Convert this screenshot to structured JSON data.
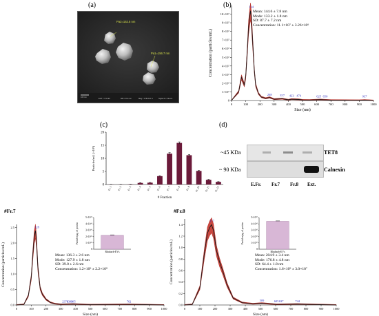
{
  "panel_labels": {
    "a": "(a)",
    "b": "(b)",
    "c": "(c)",
    "d": "(d)"
  },
  "panel_a": {
    "measure_1": "Pa2=152.5 nm",
    "measure_2": "Pa1=156.7 nm",
    "scale_bar": "100 nm",
    "footer_1": "EHT = 7.00 kV",
    "footer_2": "WD = 8.0 mm",
    "footer_3": "Mag = 178.45 K X",
    "footer_4": "Signal A = InLens"
  },
  "panel_b": {
    "stats": [
      "Mean: 144.6 ± 7.8 nm",
      "Mode: 133.2 ± 1.8 nm",
      "SD: 87.7 ± 7.2 nm",
      "Concentration: 11.1×10⁷ ± 3.26×10⁶"
    ],
    "ylabel": "Concentration (particles/mL)",
    "xlabel": "Size (nm)",
    "peak_labels": [
      "134",
      "268",
      "357",
      "423",
      "474",
      "625",
      "650",
      "937"
    ]
  },
  "panel_c": {
    "ylabel": "Particles/mL (×10⁹)",
    "xlabel": "# Fraction"
  },
  "panel_d": {
    "marker_1": "~45 KDa",
    "marker_2": "~ 90 KDa",
    "protein_1": "TET8",
    "protein_2": "Calnexin",
    "lanes": [
      "E.Fr.",
      "Fr.7",
      "Fr.8",
      "Ext."
    ]
  },
  "fr7": {
    "title": "#Fr.7",
    "stats": [
      "Mean: 136.3 ± 2.6 nm",
      "Mode: 127.9 ± 1.8 nm",
      "SD: 39.0 ± 2.6 nm",
      "Concentration: 1.2×10⁹ ± 2.2×10⁸"
    ],
    "ylabel": "Concentration (particles/mL)",
    "xlabel": "Size (nm)",
    "peak_labels": [
      "128",
      "2376",
      "1389",
      "385",
      "762"
    ],
    "inset_ylabel": "Particles/μg of protein",
    "inset_cat": "Rhubarb-EVs"
  },
  "fr8": {
    "title": "#Fr.8",
    "stats": [
      "Mean: 204.9 ± 3.4 nm",
      "Mode: 176.8 ± 4.8 nm",
      "SD: 64.4 ± 1.8 nm",
      "Concentration: 1.6×10⁹ ± 3.0×10⁷"
    ],
    "ylabel": "Concentration (particles/mL)",
    "xlabel": "Size (nm)",
    "peak_labels": [
      "177",
      "509",
      "605",
      "637",
      "744"
    ],
    "inset_ylabel": "Particles/μg of protein",
    "inset_cat": "Rhubarb-EVs"
  },
  "chart_data": [
    {
      "id": "b",
      "type": "line",
      "x": [
        0,
        50,
        70,
        90,
        100,
        110,
        120,
        130,
        134,
        140,
        150,
        160,
        170,
        190,
        210,
        240,
        268,
        300,
        357,
        400,
        423,
        474,
        500,
        550,
        625,
        650,
        700,
        800,
        900,
        937,
        1000
      ],
      "y": [
        0,
        1.0,
        2.7,
        1.8,
        2.8,
        5.5,
        8.5,
        10.0,
        10.4,
        9.4,
        6.5,
        3.6,
        1.8,
        0.8,
        0.4,
        0.25,
        0.35,
        0.15,
        0.2,
        0.08,
        0.15,
        0.12,
        0.06,
        0.05,
        0.1,
        0.08,
        0.04,
        0.03,
        0.02,
        0.05,
        0
      ],
      "xlim": [
        0,
        1000
      ],
      "ylim": [
        0,
        11
      ],
      "yticks": [
        "0",
        "1×10⁷",
        "2×10⁷",
        "3×10⁷",
        "4×10⁷",
        "5×10⁷",
        "6×10⁷",
        "7×10⁷",
        "8×10⁷",
        "9×10⁷",
        "10×10⁷"
      ],
      "xticks": [
        0,
        100,
        200,
        300,
        400,
        500,
        600,
        700,
        800,
        900,
        1000
      ]
    },
    {
      "id": "c",
      "type": "bar",
      "categories": [
        "Fr. 1",
        "Fr. 2",
        "Fr. 3",
        "Fr. 4",
        "Fr. 5",
        "Fr. 6",
        "Fr. 7",
        "Fr. 8",
        "Fr. 9",
        "Fr. 10",
        "Fr. 11",
        "Fr. 12"
      ],
      "values": [
        0.05,
        0.05,
        0.1,
        0.6,
        0.7,
        3.2,
        11.8,
        15.9,
        11.2,
        5.2,
        1.8,
        1.0
      ],
      "errors": [
        0.05,
        0.05,
        0.05,
        0.1,
        0.1,
        0.2,
        0.4,
        0.4,
        0.3,
        0.2,
        0.15,
        0.1
      ],
      "ylim": [
        0,
        20
      ],
      "yticks": [
        0,
        5,
        10,
        15,
        20
      ]
    },
    {
      "id": "fr7",
      "type": "line",
      "x": [
        0,
        50,
        80,
        100,
        110,
        120,
        128,
        135,
        145,
        160,
        175,
        200,
        230,
        260,
        300,
        385,
        500,
        762,
        1000
      ],
      "y": [
        0,
        0.02,
        0.3,
        0.9,
        1.6,
        2.2,
        2.4,
        2.1,
        1.2,
        0.55,
        0.35,
        0.18,
        0.08,
        0.04,
        0.02,
        0.03,
        0.01,
        0.02,
        0
      ],
      "xlim": [
        0,
        1000
      ],
      "ylim": [
        0,
        2.6
      ],
      "yticks": [
        0,
        0.5,
        1.0,
        1.5,
        2.0,
        2.5
      ],
      "xticks": [
        0,
        100,
        200,
        300,
        400,
        500,
        600,
        700,
        800,
        900,
        1000
      ]
    },
    {
      "id": "fr8",
      "type": "line",
      "x": [
        0,
        50,
        100,
        130,
        150,
        165,
        177,
        190,
        210,
        230,
        250,
        280,
        320,
        380,
        450,
        509,
        605,
        744,
        1000
      ],
      "y": [
        0,
        0.01,
        0.3,
        0.9,
        1.25,
        1.35,
        1.4,
        1.3,
        0.95,
        0.75,
        0.6,
        0.35,
        0.12,
        0.04,
        0.02,
        0.03,
        0.01,
        0.015,
        0
      ],
      "xlim": [
        0,
        1000
      ],
      "ylim": [
        0,
        1.5
      ],
      "yticks": [
        0,
        0.2,
        0.4,
        0.6,
        0.8,
        1.0,
        1.2,
        1.4
      ],
      "xticks": [
        0,
        100,
        200,
        300,
        400,
        500,
        600,
        700,
        800,
        900,
        1000
      ]
    },
    {
      "id": "fr7-inset",
      "type": "bar",
      "categories": [
        "Rhubarb-EVs"
      ],
      "values": [
        2.2
      ],
      "ylim": [
        0,
        5
      ],
      "yticks": [
        "0",
        "1×10¹⁰",
        "2×10¹⁰",
        "3×10¹⁰",
        "4×10¹⁰",
        "5×10¹⁰"
      ]
    },
    {
      "id": "fr8-inset",
      "type": "bar",
      "categories": [
        "Rhubarb-EVs"
      ],
      "values": [
        4.4
      ],
      "ylim": [
        0,
        5
      ],
      "yticks": [
        "0",
        "1×10¹⁰",
        "2×10¹⁰",
        "3×10¹⁰",
        "4×10¹⁰",
        "5×10¹⁰"
      ]
    }
  ]
}
